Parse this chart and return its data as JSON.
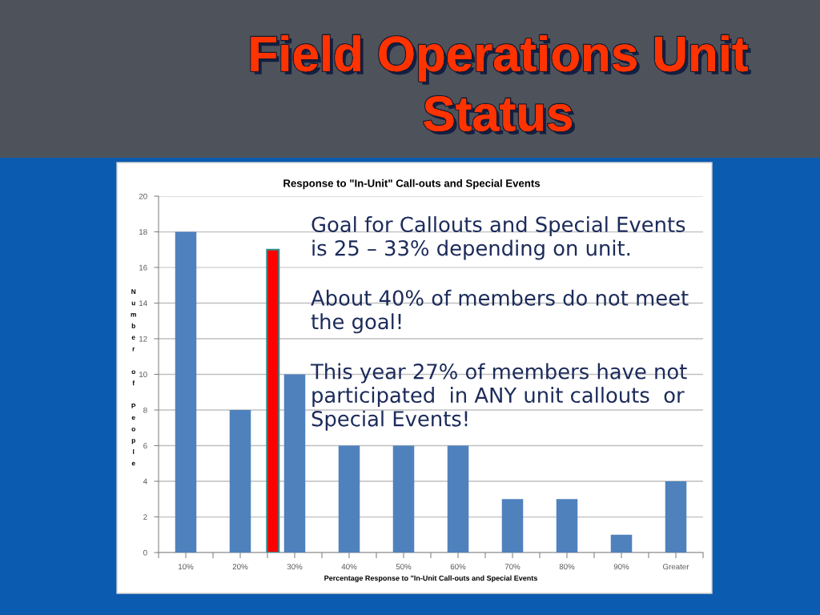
{
  "chart_data": {
    "type": "bar",
    "title": "Field Operations Unit Status",
    "subtitle": "Response to \"In-Unit\" Call-outs and Special Events",
    "xlabel": "Percentage Response to \"In-Unit Call-outs and Special Events",
    "ylabel": "Number of People",
    "x": [
      10,
      20,
      30,
      40,
      50,
      60,
      70,
      80,
      90,
      100
    ],
    "series": [
      {
        "color": "#4f81bd",
        "values": [
          18,
          8,
          10,
          6,
          6,
          6,
          3,
          3,
          1,
          4
        ]
      },
      {
        "x": [
          26
        ],
        "color": "#ff0000",
        "values": [
          17
        ]
      }
    ],
    "xlim": [
      5,
      105
    ],
    "xticks": [
      {
        "value": 5,
        "label": null
      },
      {
        "value": 10,
        "label": "10%"
      },
      {
        "value": 15,
        "label": null
      },
      {
        "value": 20,
        "label": "20%"
      },
      {
        "value": 25,
        "label": null
      },
      {
        "value": 30,
        "label": "30%"
      },
      {
        "value": 35,
        "label": null
      },
      {
        "value": 40,
        "label": "40%"
      },
      {
        "value": 45,
        "label": null
      },
      {
        "value": 50,
        "label": "50%"
      },
      {
        "value": 55,
        "label": null
      },
      {
        "value": 60,
        "label": "60%"
      },
      {
        "value": 65,
        "label": null
      },
      {
        "value": 70,
        "label": "70%"
      },
      {
        "value": 75,
        "label": null
      },
      {
        "value": 80,
        "label": "80%"
      },
      {
        "value": 85,
        "label": null
      },
      {
        "value": 90,
        "label": "90%"
      },
      {
        "value": 95,
        "label": null
      },
      {
        "value": 100,
        "label": "Greater"
      },
      {
        "value": 105,
        "label": null
      }
    ],
    "ylim": [
      0,
      20
    ],
    "yticks": [
      0,
      2,
      4,
      6,
      8,
      10,
      12,
      14,
      16,
      18,
      20
    ],
    "grid": "y",
    "annotations": [
      "Goal for Callouts and Special Events is 25 – 33% depending on unit.",
      "About 40% of members do not meet the goal!",
      "This year 27% of members have not participated  in ANY unit callouts  or Special Events!"
    ]
  }
}
